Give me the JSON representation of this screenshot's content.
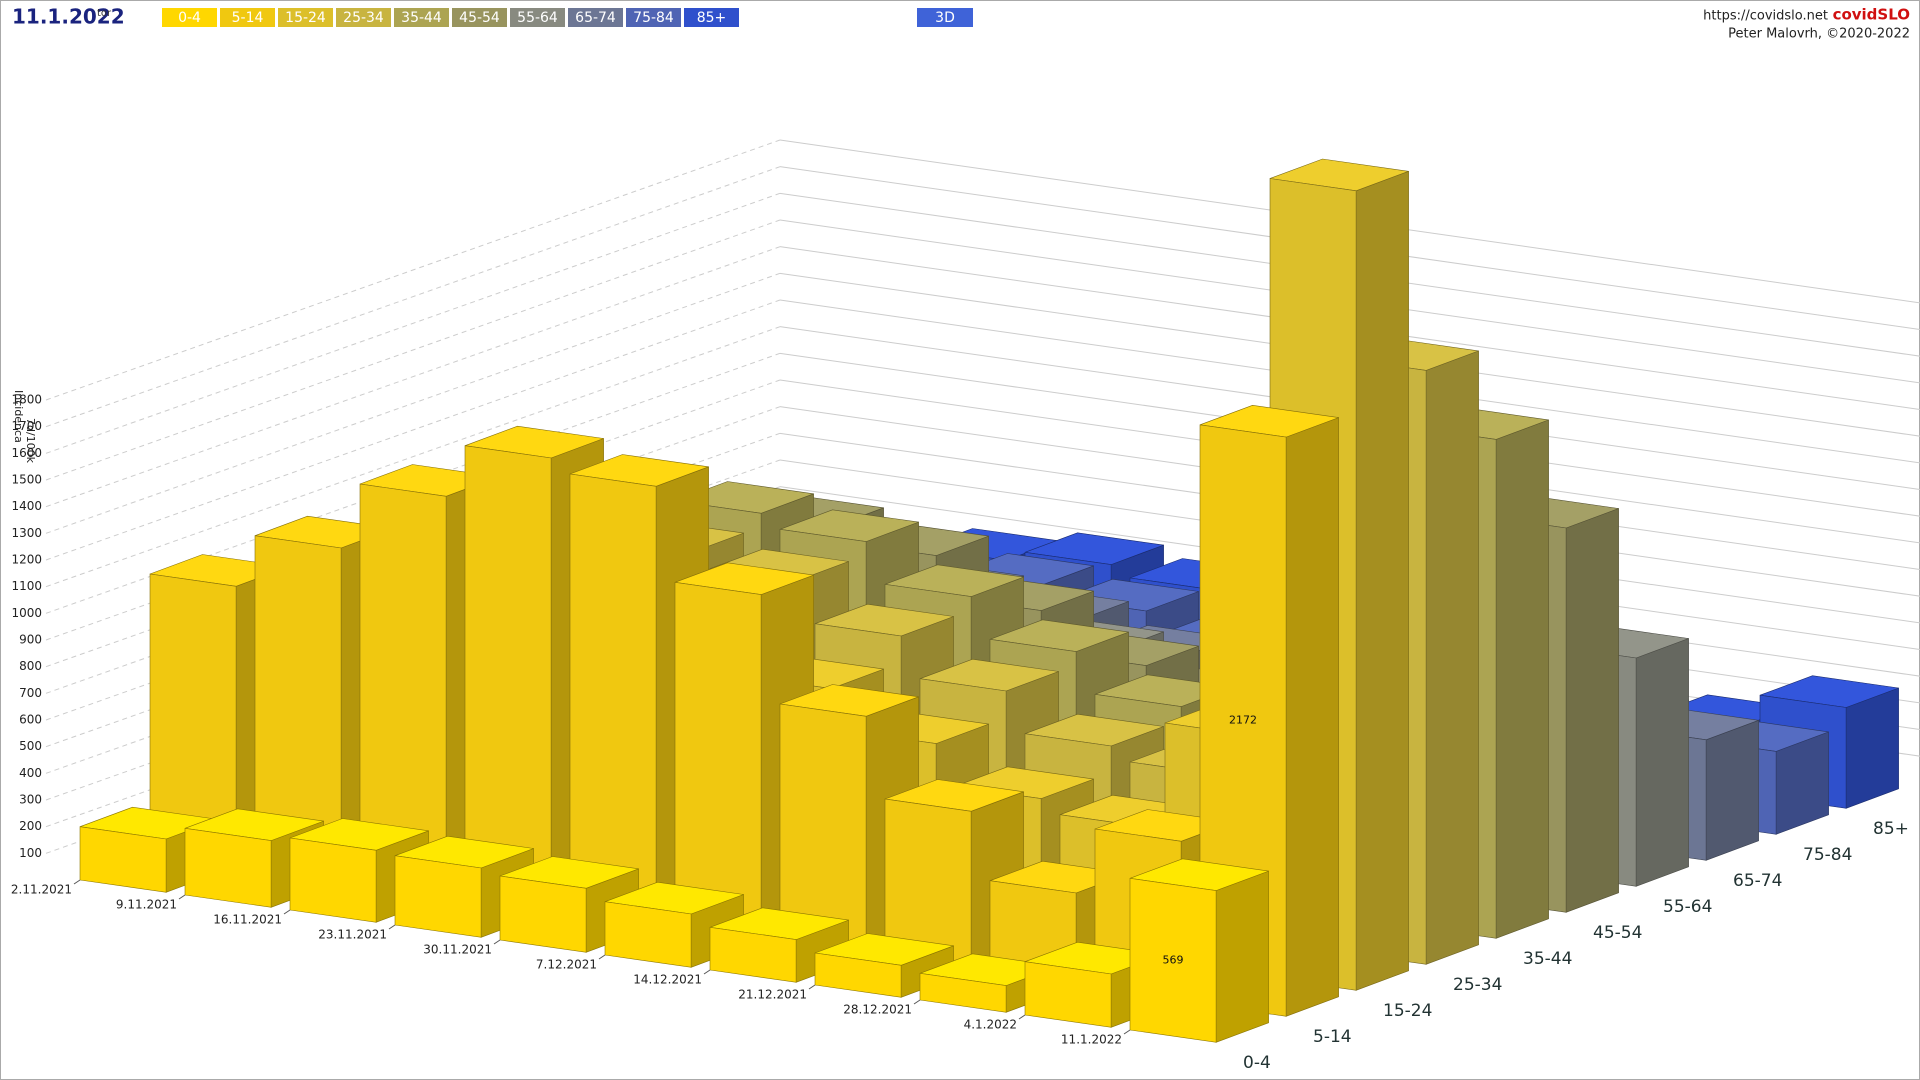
{
  "chart_data": {
    "type": "bar3d",
    "title": "11.1.2022",
    "subtitle": "tor",
    "mode_button": "3D",
    "site": "https://covidslo.net",
    "brand": "covidSLO",
    "author": "Peter Malovrh, ©2020-2022",
    "y_label": [
      "7d/100k",
      "Incidenca"
    ],
    "categories": [
      "2.11.2021",
      "9.11.2021",
      "16.11.2021",
      "23.11.2021",
      "30.11.2021",
      "7.12.2021",
      "14.12.2021",
      "21.12.2021",
      "28.12.2021",
      "4.1.2022",
      "11.1.2022"
    ],
    "ylim": [
      0,
      1800
    ],
    "yticks": [
      100,
      200,
      300,
      400,
      500,
      600,
      700,
      800,
      900,
      1000,
      1100,
      1200,
      1300,
      1400,
      1500,
      1600,
      1700,
      1800
    ],
    "grid": true,
    "series": [
      {
        "name": "0-4",
        "color": "#ffd700",
        "values": [
          200,
          250,
          270,
          260,
          240,
          200,
          160,
          120,
          100,
          200,
          569
        ]
      },
      {
        "name": "5-14",
        "color": "#f0c810",
        "values": [
          1050,
          1250,
          1500,
          1700,
          1650,
          1300,
          900,
          600,
          350,
          600,
          2172
        ]
      },
      {
        "name": "15-24",
        "color": "#dcbf2a",
        "values": [
          700,
          800,
          900,
          1000,
          1000,
          850,
          700,
          550,
          500,
          900,
          2998
        ]
      },
      {
        "name": "25-34",
        "color": "#c8b440",
        "values": [
          800,
          900,
          1050,
          1150,
          1100,
          950,
          800,
          650,
          600,
          1000,
          2227
        ]
      },
      {
        "name": "35-44",
        "color": "#aca452",
        "values": [
          850,
          950,
          1100,
          1200,
          1150,
          1000,
          850,
          700,
          600,
          900,
          1871
        ]
      },
      {
        "name": "45-54",
        "color": "#98945e",
        "values": [
          700,
          800,
          950,
          1050,
          1000,
          850,
          700,
          550,
          450,
          700,
          1441
        ]
      },
      {
        "name": "55-64",
        "color": "#888a80",
        "values": [
          500,
          600,
          700,
          750,
          700,
          600,
          480,
          380,
          300,
          450,
          856
        ]
      },
      {
        "name": "65-74",
        "color": "#6c7694",
        "values": [
          400,
          480,
          560,
          600,
          560,
          480,
          380,
          300,
          220,
          300,
          452
        ]
      },
      {
        "name": "75-84",
        "color": "#4f64b4",
        "values": [
          350,
          420,
          500,
          540,
          500,
          430,
          340,
          260,
          200,
          230,
          311
        ]
      },
      {
        "name": "85+",
        "color": "#2f50cc",
        "values": [
          350,
          420,
          480,
          520,
          480,
          420,
          340,
          280,
          220,
          250,
          378
        ]
      }
    ]
  }
}
